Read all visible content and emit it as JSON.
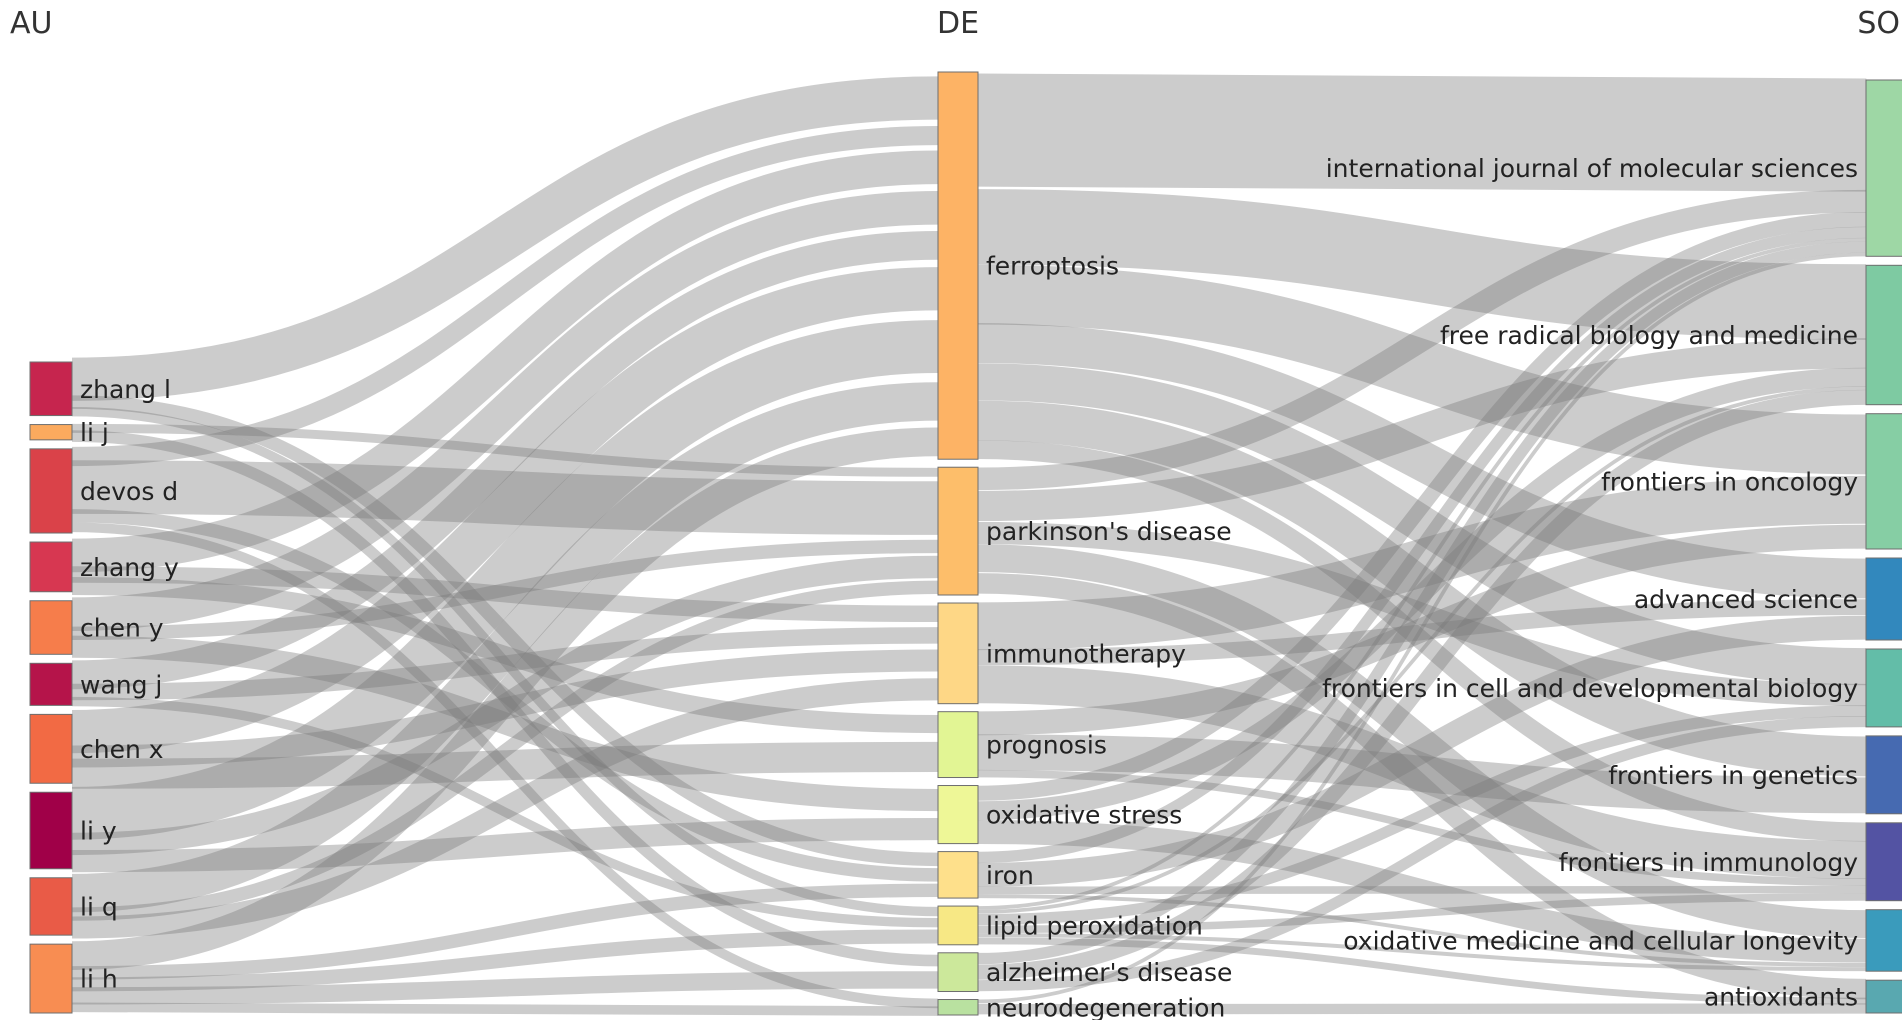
{
  "columns": [
    {
      "key": "AU",
      "title": "AU"
    },
    {
      "key": "DE",
      "title": "DE"
    },
    {
      "key": "SO",
      "title": "SO"
    }
  ],
  "nodes": {
    "AU": [
      {
        "id": "zhang_l",
        "label": "zhang l",
        "value": 14,
        "color": "#c6254e"
      },
      {
        "id": "li_j",
        "label": "li j",
        "value": 4,
        "color": "#fbaa5e"
      },
      {
        "id": "devos_d",
        "label": "devos d",
        "value": 22,
        "color": "#da4249"
      },
      {
        "id": "zhang_y",
        "label": "zhang y",
        "value": 13,
        "color": "#d73751"
      },
      {
        "id": "chen_y",
        "label": "chen y",
        "value": 14,
        "color": "#f67d4b"
      },
      {
        "id": "wang_j",
        "label": "wang j",
        "value": 11,
        "color": "#b5144a"
      },
      {
        "id": "chen_x",
        "label": "chen x",
        "value": 18,
        "color": "#f26a44"
      },
      {
        "id": "li_y",
        "label": "li y",
        "value": 20,
        "color": "#a00048"
      },
      {
        "id": "li_q",
        "label": "li q",
        "value": 15,
        "color": "#e95b47"
      },
      {
        "id": "li_h",
        "label": "li h",
        "value": 18,
        "color": "#f88d52"
      }
    ],
    "DE": [
      {
        "id": "ferroptosis",
        "label": "ferroptosis",
        "value": 100,
        "color": "#fdb365"
      },
      {
        "id": "parkinsons",
        "label": "parkinson's disease",
        "value": 33,
        "color": "#fdbe6a"
      },
      {
        "id": "immunotherapy",
        "label": "immunotherapy",
        "value": 26,
        "color": "#fed786"
      },
      {
        "id": "prognosis",
        "label": "prognosis",
        "value": 17,
        "color": "#e2f594"
      },
      {
        "id": "oxidative_stress",
        "label": "oxidative stress",
        "value": 15,
        "color": "#eef797"
      },
      {
        "id": "iron",
        "label": "iron",
        "value": 12,
        "color": "#fee08b"
      },
      {
        "id": "lipid_peroxidation",
        "label": "lipid peroxidation",
        "value": 10,
        "color": "#f7e885"
      },
      {
        "id": "alzheimers",
        "label": "alzheimer's disease",
        "value": 10,
        "color": "#cce89b"
      },
      {
        "id": "neurodegeneration",
        "label": "neurodegeneration",
        "value": 4,
        "color": "#b9e1a0"
      }
    ],
    "SO": [
      {
        "id": "ijms",
        "label": "international journal of molecular sciences",
        "value": 43,
        "color": "#9ed7a5"
      },
      {
        "id": "frbm",
        "label": "free radical biology and medicine",
        "value": 34,
        "color": "#7ecaa2"
      },
      {
        "id": "fonc",
        "label": "frontiers in oncology",
        "value": 33,
        "color": "#86cea4"
      },
      {
        "id": "advsci",
        "label": "advanced science",
        "value": 20,
        "color": "#3288bd"
      },
      {
        "id": "fcdb",
        "label": "frontiers in cell and developmental biology",
        "value": 19,
        "color": "#63bda8"
      },
      {
        "id": "fgen",
        "label": "frontiers in genetics",
        "value": 19,
        "color": "#466ab1"
      },
      {
        "id": "fimm",
        "label": "frontiers in immunology",
        "value": 19,
        "color": "#5353a3"
      },
      {
        "id": "omcl",
        "label": "oxidative medicine and cellular longevity",
        "value": 15,
        "color": "#3a9bbc"
      },
      {
        "id": "antiox",
        "label": "antioxidants",
        "value": 8,
        "color": "#59a8b0"
      }
    ]
  },
  "links": [
    {
      "source": "zhang_l",
      "target": "ferroptosis",
      "value": 9
    },
    {
      "source": "zhang_l",
      "target": "iron",
      "value": 3
    },
    {
      "source": "zhang_l",
      "target": "lipid_peroxidation",
      "value": 2
    },
    {
      "source": "li_j",
      "target": "parkinsons",
      "value": 2
    },
    {
      "source": "li_j",
      "target": "alzheimers",
      "value": 2
    },
    {
      "source": "devos_d",
      "target": "ferroptosis",
      "value": 4
    },
    {
      "source": "devos_d",
      "target": "parkinsons",
      "value": 12
    },
    {
      "source": "devos_d",
      "target": "iron",
      "value": 3
    },
    {
      "source": "devos_d",
      "target": "neurodegeneration",
      "value": 3
    },
    {
      "source": "zhang_y",
      "target": "ferroptosis",
      "value": 7
    },
    {
      "source": "zhang_y",
      "target": "immunotherapy",
      "value": 3
    },
    {
      "source": "zhang_y",
      "target": "prognosis",
      "value": 3
    },
    {
      "source": "chen_y",
      "target": "ferroptosis",
      "value": 7
    },
    {
      "source": "chen_y",
      "target": "parkinsons",
      "value": 3
    },
    {
      "source": "chen_y",
      "target": "oxidative_stress",
      "value": 4
    },
    {
      "source": "wang_j",
      "target": "ferroptosis",
      "value": 6
    },
    {
      "source": "wang_j",
      "target": "immunotherapy",
      "value": 3
    },
    {
      "source": "wang_j",
      "target": "lipid_peroxidation",
      "value": 2
    },
    {
      "source": "chen_x",
      "target": "ferroptosis",
      "value": 9
    },
    {
      "source": "chen_x",
      "target": "immunotherapy",
      "value": 4
    },
    {
      "source": "chen_x",
      "target": "prognosis",
      "value": 5
    },
    {
      "source": "li_y",
      "target": "ferroptosis",
      "value": 11
    },
    {
      "source": "li_y",
      "target": "parkinsons",
      "value": 5
    },
    {
      "source": "li_y",
      "target": "oxidative_stress",
      "value": 4
    },
    {
      "source": "li_q",
      "target": "ferroptosis",
      "value": 8
    },
    {
      "source": "li_q",
      "target": "parkinsons",
      "value": 3
    },
    {
      "source": "li_q",
      "target": "immunotherapy",
      "value": 4
    },
    {
      "source": "li_h",
      "target": "ferroptosis",
      "value": 6
    },
    {
      "source": "li_h",
      "target": "iron",
      "value": 3
    },
    {
      "source": "li_h",
      "target": "lipid_peroxidation",
      "value": 3
    },
    {
      "source": "li_h",
      "target": "alzheimers",
      "value": 3
    },
    {
      "source": "li_h",
      "target": "neurodegeneration",
      "value": 3
    },
    {
      "source": "ferroptosis",
      "target": "ijms",
      "value": 30
    },
    {
      "source": "ferroptosis",
      "target": "frbm",
      "value": 20
    },
    {
      "source": "ferroptosis",
      "target": "fonc",
      "value": 15
    },
    {
      "source": "ferroptosis",
      "target": "advsci",
      "value": 10
    },
    {
      "source": "ferroptosis",
      "target": "fcdb",
      "value": 10
    },
    {
      "source": "ferroptosis",
      "target": "fgen",
      "value": 10
    },
    {
      "source": "ferroptosis",
      "target": "fimm",
      "value": 5
    },
    {
      "source": "parkinsons",
      "target": "ijms",
      "value": 6
    },
    {
      "source": "parkinsons",
      "target": "frbm",
      "value": 8
    },
    {
      "source": "parkinsons",
      "target": "omcl",
      "value": 7
    },
    {
      "source": "parkinsons",
      "target": "antiox",
      "value": 6
    },
    {
      "source": "parkinsons",
      "target": "fcdb",
      "value": 6
    },
    {
      "source": "immunotherapy",
      "target": "fonc",
      "value": 12
    },
    {
      "source": "immunotherapy",
      "target": "fimm",
      "value": 10
    },
    {
      "source": "immunotherapy",
      "target": "advsci",
      "value": 4
    },
    {
      "source": "prognosis",
      "target": "fgen",
      "value": 9
    },
    {
      "source": "prognosis",
      "target": "fonc",
      "value": 6
    },
    {
      "source": "prognosis",
      "target": "fimm",
      "value": 2
    },
    {
      "source": "oxidative_stress",
      "target": "omcl",
      "value": 6
    },
    {
      "source": "oxidative_stress",
      "target": "frbm",
      "value": 5
    },
    {
      "source": "oxidative_stress",
      "target": "ijms",
      "value": 4
    },
    {
      "source": "iron",
      "target": "ijms",
      "value": 3
    },
    {
      "source": "iron",
      "target": "advsci",
      "value": 6
    },
    {
      "source": "iron",
      "target": "fimm",
      "value": 2
    },
    {
      "source": "iron",
      "target": "omcl",
      "value": 1
    },
    {
      "source": "lipid_peroxidation",
      "target": "frbm",
      "value": 1
    },
    {
      "source": "lipid_peroxidation",
      "target": "fcdb",
      "value": 3
    },
    {
      "source": "lipid_peroxidation",
      "target": "omcl",
      "value": 1
    },
    {
      "source": "lipid_peroxidation",
      "target": "antiox",
      "value": 2
    },
    {
      "source": "lipid_peroxidation",
      "target": "fimm",
      "value": 2
    },
    {
      "source": "lipid_peroxidation",
      "target": "ijms",
      "value": 1
    },
    {
      "source": "alzheimers",
      "target": "frbm",
      "value": 4
    },
    {
      "source": "alzheimers",
      "target": "ijms",
      "value": 3
    },
    {
      "source": "alzheimers",
      "target": "fcdb",
      "value": 3
    },
    {
      "source": "neurodegeneration",
      "target": "antiox",
      "value": 3
    },
    {
      "source": "neurodegeneration",
      "target": "ijms",
      "value": 1
    }
  ]
}
